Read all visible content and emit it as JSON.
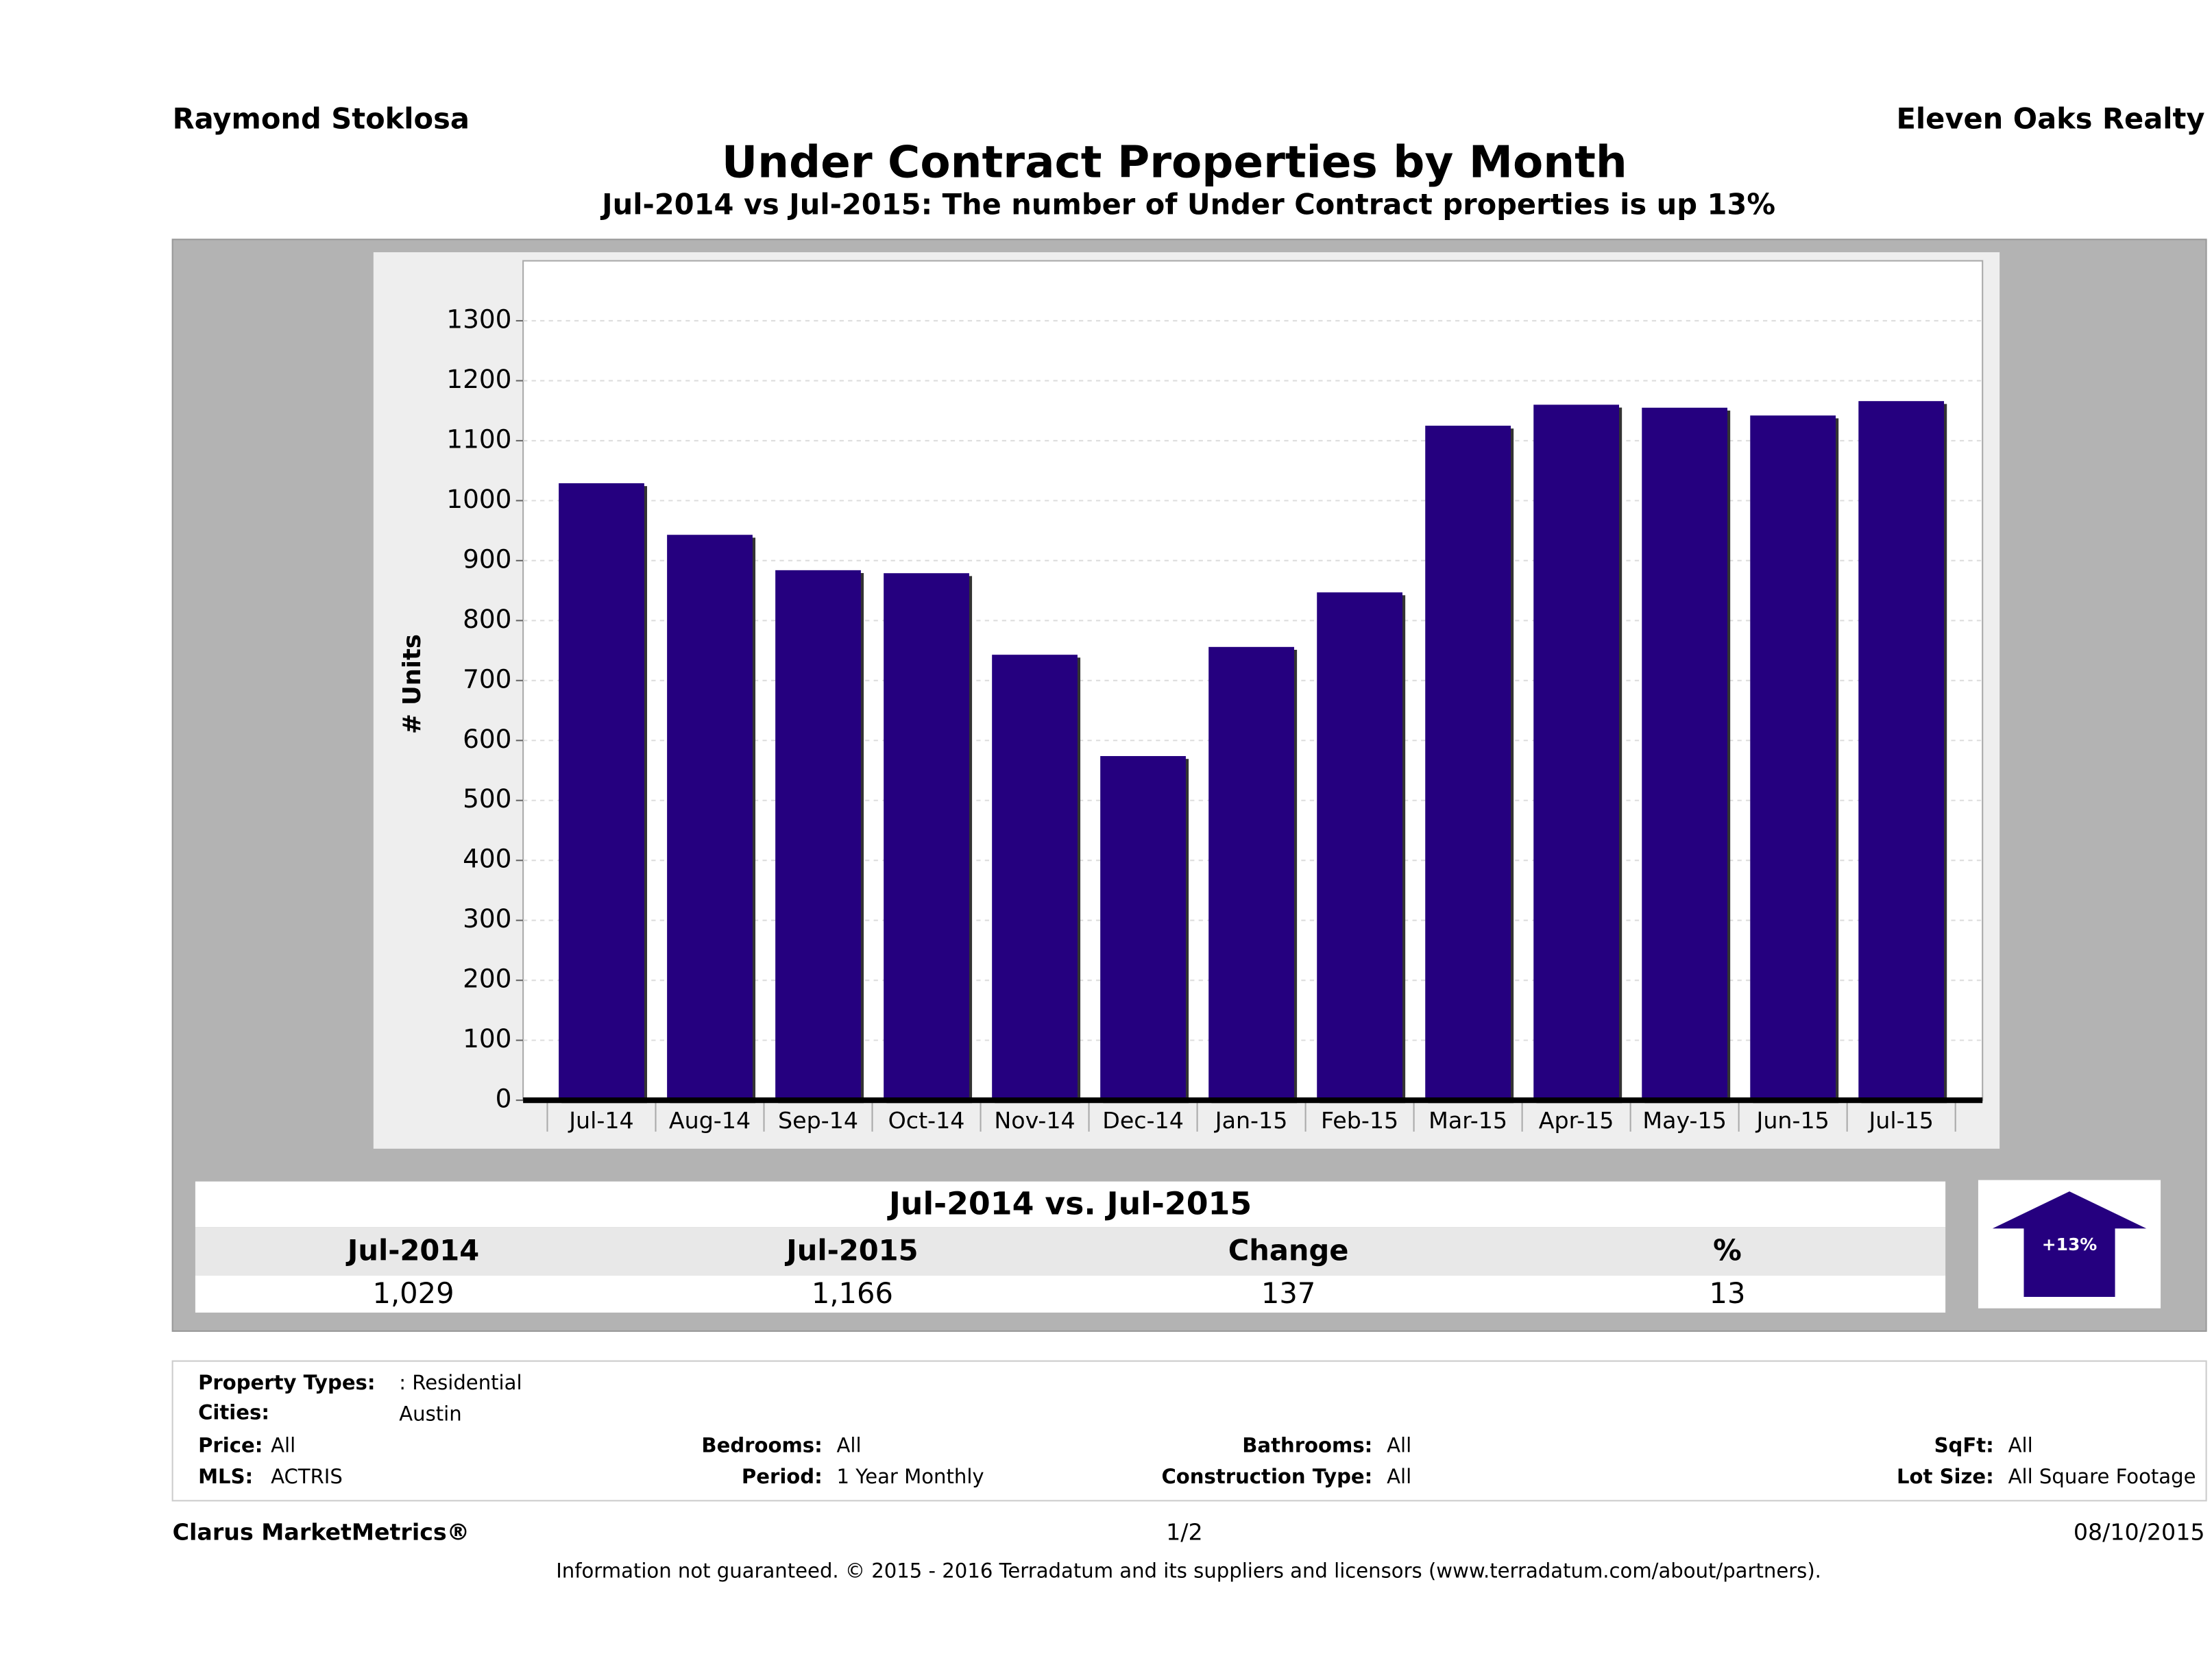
{
  "header": {
    "left": "Raymond Stoklosa",
    "right": "Eleven Oaks Realty"
  },
  "chart_data": {
    "type": "bar",
    "title": "Under Contract Properties by Month",
    "subtitle": "Jul-2014 vs Jul-2015: The number of Under Contract   properties is up 13%",
    "y_label": "# Units",
    "categories": [
      "Jul-14",
      "Aug-14",
      "Sep-14",
      "Oct-14",
      "Nov-14",
      "Dec-14",
      "Jan-15",
      "Feb-15",
      "Mar-15",
      "Apr-15",
      "May-15",
      "Jun-15",
      "Jul-15"
    ],
    "values": [
      1029,
      943,
      884,
      879,
      743,
      574,
      756,
      847,
      1125,
      1160,
      1155,
      1142,
      1166
    ],
    "color": "#25007f",
    "ylim": [
      0,
      1400
    ],
    "yticks": [
      0,
      100,
      200,
      300,
      400,
      500,
      600,
      700,
      800,
      900,
      1000,
      1100,
      1200,
      1300
    ],
    "grid": true
  },
  "summary": {
    "title": "Jul-2014 vs. Jul-2015",
    "headers": [
      "Jul-2014",
      "Jul-2015",
      "Change",
      "%"
    ],
    "values": [
      "1,029",
      "1,166",
      137,
      13
    ],
    "badge": "+13%"
  },
  "details": {
    "property_types_label": "Property Types:",
    "property_types": ": Residential",
    "cities_label": "Cities:",
    "cities": "Austin",
    "price_label": "Price:",
    "price": "All",
    "bedrooms_label": "Bedrooms:",
    "bedrooms": "All",
    "bathrooms_label": "Bathrooms:",
    "bathrooms": "All",
    "sqft_label": "SqFt:",
    "sqft": "All",
    "mls_label": "MLS:",
    "mls": "ACTRIS",
    "period_label": "Period:",
    "period": "1 Year Monthly",
    "construction_label": "Construction Type:",
    "construction": "All",
    "lot_label": "Lot Size:",
    "lot": "All Square Footage"
  },
  "footer": {
    "brand": "Clarus MarketMetrics®",
    "page": "1/2",
    "date": "08/10/2015",
    "disclaimer": "Information not guaranteed. © 2015 - 2016 Terradatum and its suppliers and licensors (www.terradatum.com/about/partners)."
  }
}
